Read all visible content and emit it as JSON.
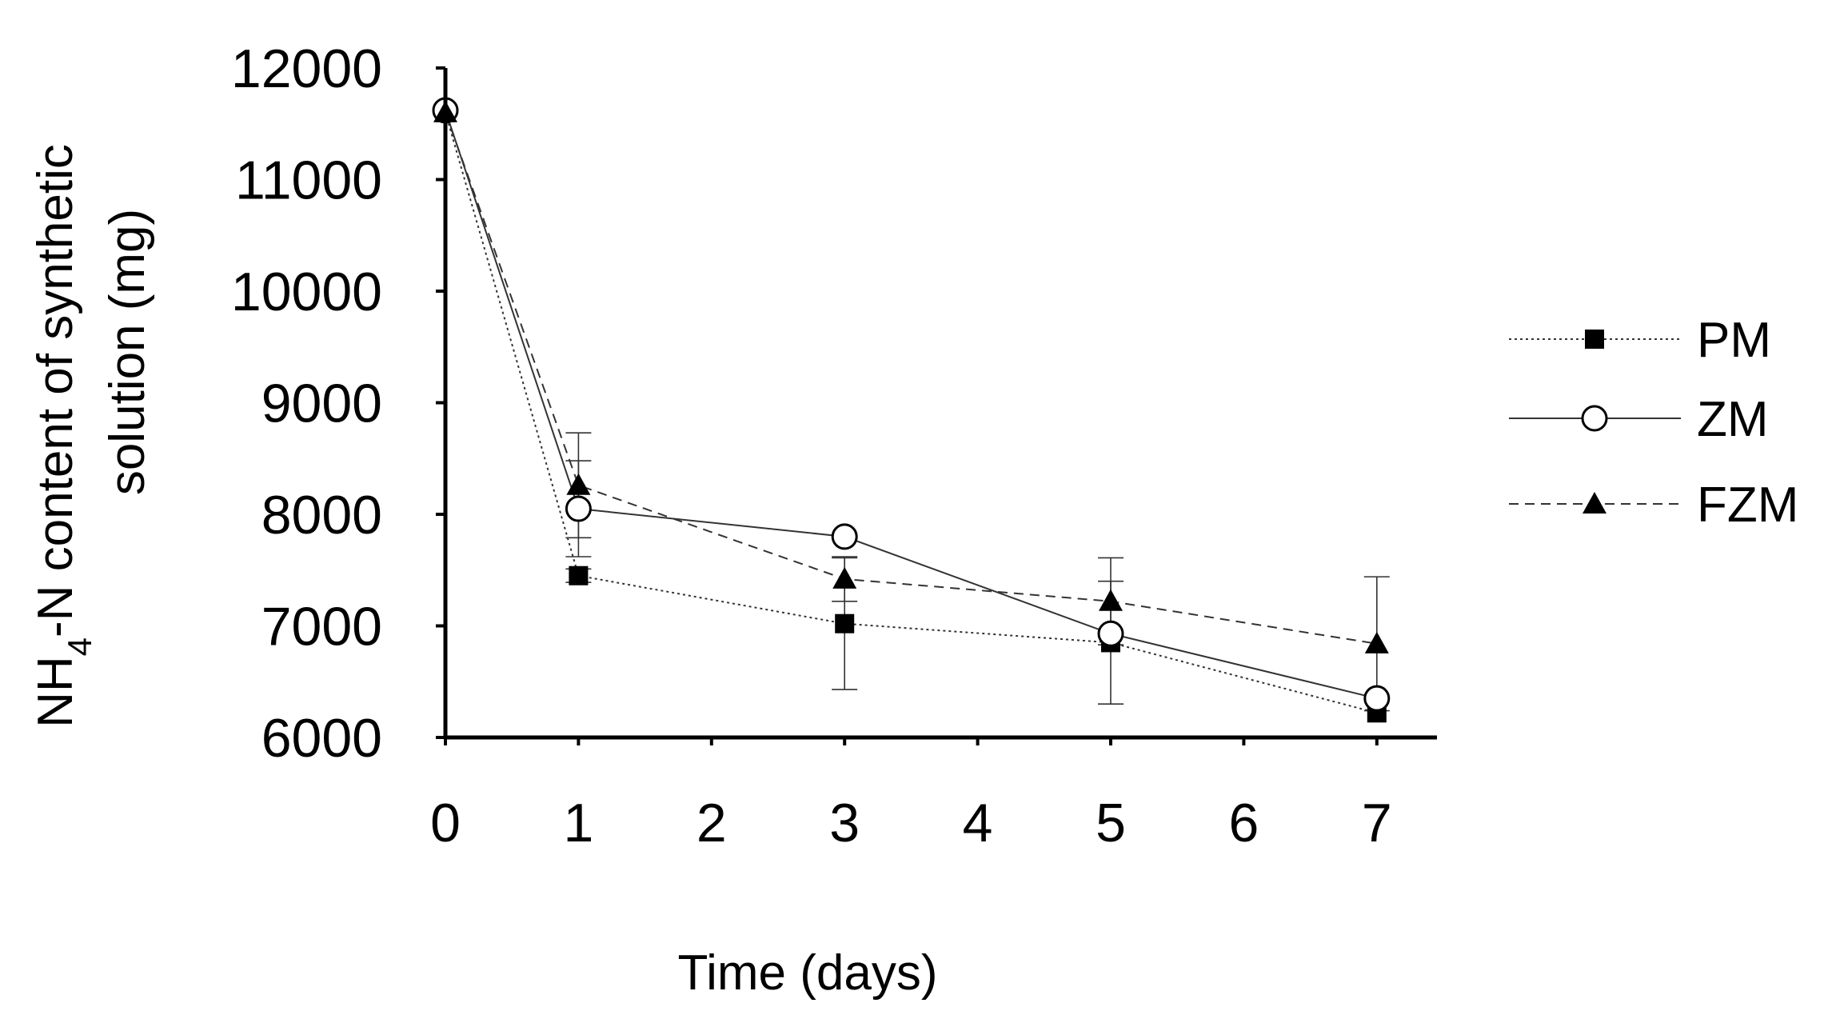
{
  "chart_data": {
    "type": "line",
    "title": "",
    "xlabel": "Time (days)",
    "ylabel": {
      "line1_prefix": "NH",
      "line1_subscript": "4",
      "line1_suffix": "-N content of synthetic",
      "line2": "solution (mg)"
    },
    "xlim": [
      0,
      7.5
    ],
    "ylim": [
      6000,
      12000
    ],
    "x_ticks": [
      0,
      1,
      2,
      3,
      4,
      5,
      6,
      7
    ],
    "y_ticks": [
      6000,
      7000,
      8000,
      9000,
      10000,
      11000,
      12000
    ],
    "grid": false,
    "legend_position": "right",
    "series": [
      {
        "name": "PM",
        "marker": "filled-square",
        "line_style": "dotted",
        "x": [
          0,
          1,
          3,
          5,
          7
        ],
        "y": [
          11600,
          7450,
          7020,
          6850,
          6220
        ],
        "error": [
          0,
          60,
          590,
          550,
          0
        ]
      },
      {
        "name": "ZM",
        "marker": "open-circle",
        "line_style": "solid",
        "x": [
          0,
          1,
          3,
          5,
          7
        ],
        "y": [
          11620,
          8050,
          7800,
          6930,
          6350
        ],
        "error": [
          0,
          430,
          0,
          0,
          0
        ]
      },
      {
        "name": "FZM",
        "marker": "filled-triangle",
        "line_style": "dashed",
        "x": [
          0,
          1,
          3,
          5,
          7
        ],
        "y": [
          11600,
          8260,
          7420,
          7220,
          6840
        ],
        "error": [
          0,
          470,
          200,
          390,
          600
        ]
      }
    ],
    "colors": {
      "markers": "#000000",
      "axes": "#000000",
      "lines": "#333333"
    }
  }
}
